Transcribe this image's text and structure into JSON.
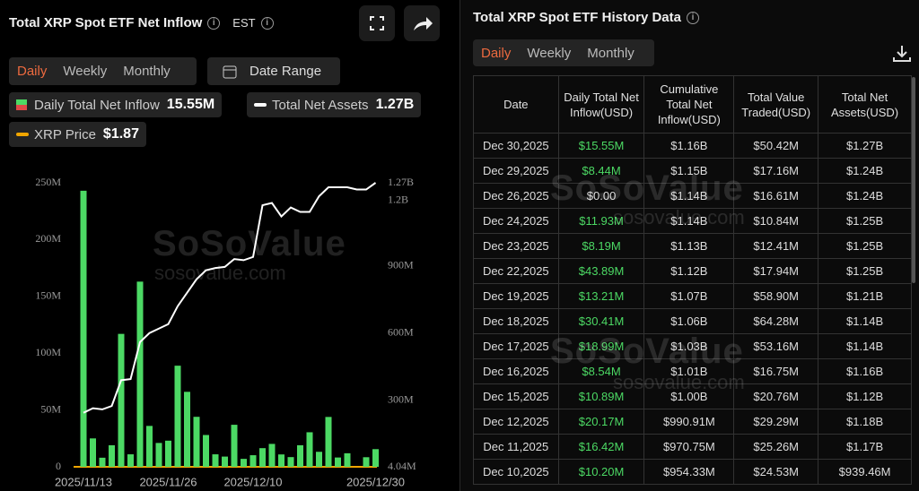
{
  "left_panel": {
    "title": "Total XRP Spot ETF Net Inflow",
    "timezone": "EST",
    "tabs": [
      "Daily",
      "Weekly",
      "Monthly"
    ],
    "date_range": "Date Range",
    "legend": [
      {
        "label": "Daily Total Net Inflow",
        "value": "15.55M"
      },
      {
        "label": "Total Net Assets",
        "value": "1.27B"
      },
      {
        "label": "XRP Price",
        "value": "$1.87"
      }
    ]
  },
  "watermark": {
    "brand": "SoSoValue",
    "site": "sosovalue.com"
  },
  "chart_data": {
    "type": "combo",
    "categories": [
      "2025/11/13",
      null,
      null,
      null,
      null,
      null,
      null,
      null,
      null,
      "2025/11/26",
      null,
      null,
      null,
      null,
      null,
      null,
      null,
      null,
      "2025/12/10",
      null,
      null,
      null,
      null,
      null,
      null,
      null,
      null,
      null,
      null,
      null,
      null,
      "2025/12/30"
    ],
    "series": [
      {
        "type": "bar",
        "color": "#4cd964",
        "values": [
          243,
          25,
          8,
          19,
          117,
          11,
          163,
          36,
          21,
          23,
          89,
          66,
          44,
          28,
          11,
          9,
          37,
          7,
          10.2,
          16.42,
          20.17,
          10.89,
          8.54,
          18.99,
          30.41,
          13.21,
          43.89,
          8.19,
          11.93,
          0,
          8.44,
          15.55
        ]
      },
      {
        "type": "line",
        "axis": "y2",
        "color": "#ffffff",
        "values": [
          245,
          265,
          260,
          275,
          390,
          395,
          560,
          600,
          620,
          640,
          720,
          780,
          840,
          880,
          890,
          895,
          930,
          925,
          939.46,
          1170,
          1180,
          1120,
          1160,
          1140,
          1140,
          1210,
          1250,
          1250,
          1250,
          1240,
          1240,
          1270
        ]
      }
    ],
    "ylim": [
      0,
      250
    ],
    "yticks": [
      {
        "value": 0,
        "label": "0"
      },
      {
        "value": 50,
        "label": "50M"
      },
      {
        "value": 100,
        "label": "100M"
      },
      {
        "value": 150,
        "label": "150M"
      },
      {
        "value": 200,
        "label": "200M"
      },
      {
        "value": 250,
        "label": "250M"
      }
    ],
    "y2lim": [
      4.04,
      1270
    ],
    "y2ticks": [
      {
        "value": 4.04,
        "label": "4.04M"
      },
      {
        "value": 300,
        "label": "300M"
      },
      {
        "value": 600,
        "label": "600M"
      },
      {
        "value": 900,
        "label": "900M"
      },
      {
        "value": 1200,
        "label": "1.2B"
      },
      {
        "value": 1270,
        "label": "1.27B"
      }
    ]
  },
  "history": {
    "title": "Total XRP Spot ETF History Data",
    "tabs": [
      "Daily",
      "Weekly",
      "Monthly"
    ],
    "columns": [
      "Date",
      "Daily Total Net Inflow(USD)",
      "Cumulative Total Net Inflow(USD)",
      "Total Value Traded(USD)",
      "Total Net Assets(USD)"
    ],
    "rows": [
      [
        "Dec 30,2025",
        "$15.55M",
        "$1.16B",
        "$50.42M",
        "$1.27B"
      ],
      [
        "Dec 29,2025",
        "$8.44M",
        "$1.15B",
        "$17.16M",
        "$1.24B"
      ],
      [
        "Dec 26,2025",
        "$0.00",
        "$1.14B",
        "$16.61M",
        "$1.24B"
      ],
      [
        "Dec 24,2025",
        "$11.93M",
        "$1.14B",
        "$10.84M",
        "$1.25B"
      ],
      [
        "Dec 23,2025",
        "$8.19M",
        "$1.13B",
        "$12.41M",
        "$1.25B"
      ],
      [
        "Dec 22,2025",
        "$43.89M",
        "$1.12B",
        "$17.94M",
        "$1.25B"
      ],
      [
        "Dec 19,2025",
        "$13.21M",
        "$1.07B",
        "$58.90M",
        "$1.21B"
      ],
      [
        "Dec 18,2025",
        "$30.41M",
        "$1.06B",
        "$64.28M",
        "$1.14B"
      ],
      [
        "Dec 17,2025",
        "$18.99M",
        "$1.03B",
        "$53.16M",
        "$1.14B"
      ],
      [
        "Dec 16,2025",
        "$8.54M",
        "$1.01B",
        "$16.75M",
        "$1.16B"
      ],
      [
        "Dec 15,2025",
        "$10.89M",
        "$1.00B",
        "$20.76M",
        "$1.12B"
      ],
      [
        "Dec 12,2025",
        "$20.17M",
        "$990.91M",
        "$29.29M",
        "$1.18B"
      ],
      [
        "Dec 11,2025",
        "$16.42M",
        "$970.75M",
        "$25.26M",
        "$1.17B"
      ],
      [
        "Dec 10,2025",
        "$10.20M",
        "$954.33M",
        "$24.53M",
        "$939.46M"
      ]
    ]
  }
}
